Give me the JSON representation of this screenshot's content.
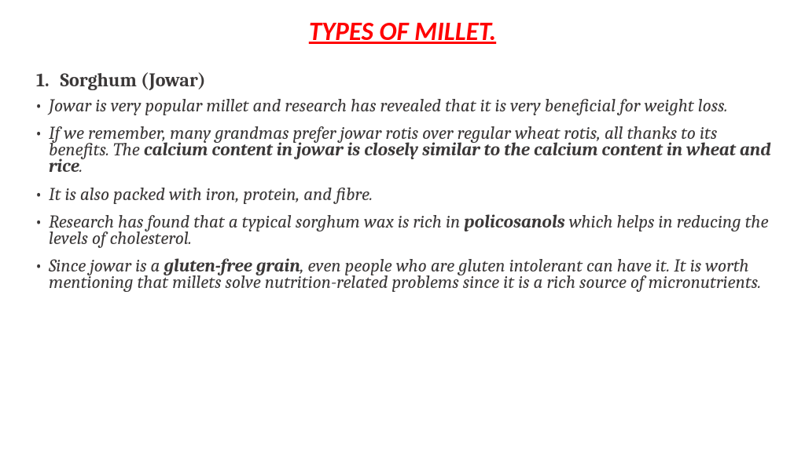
{
  "title": {
    "text": "TYPES OF MILLET.",
    "color": "#ff0000"
  },
  "heading": {
    "number": "1.",
    "text": "Sorghum (Jowar)",
    "color": "#3b3838"
  },
  "body_color": "#3b3838",
  "bullets": [
    {
      "parts": [
        {
          "text": "Jowar is very popular millet and research has revealed that it is very beneficial for weight loss.",
          "bold": false
        }
      ]
    },
    {
      "parts": [
        {
          "text": "If we remember, many grandmas prefer jowar rotis over regular wheat rotis, all thanks to its benefits. The ",
          "bold": false
        },
        {
          "text": "calcium content in jowar is closely similar to the calcium content in wheat and rice",
          "bold": true
        },
        {
          "text": ".",
          "bold": false
        }
      ]
    },
    {
      "parts": [
        {
          "text": "It is also packed with iron, protein, and fibre.",
          "bold": false
        }
      ]
    },
    {
      "parts": [
        {
          "text": "Research has found that a typical sorghum wax is rich in ",
          "bold": false
        },
        {
          "text": "policosanols",
          "bold": true
        },
        {
          "text": " which helps in reducing the levels of cholesterol.",
          "bold": false
        }
      ]
    },
    {
      "parts": [
        {
          "text": "Since jowar is a ",
          "bold": false
        },
        {
          "text": "gluten-free grain",
          "bold": true
        },
        {
          "text": ", even people who are gluten intolerant can have it. It is worth mentioning that millets solve nutrition-related problems since it is a rich source of micronutrients.",
          "bold": false
        }
      ]
    }
  ]
}
